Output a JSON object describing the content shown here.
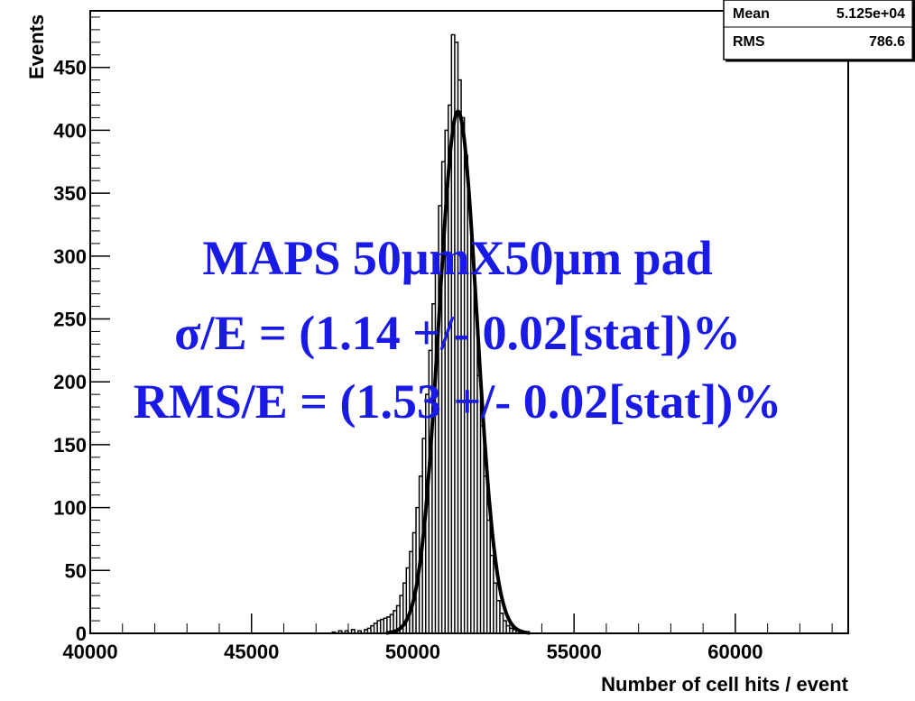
{
  "chart_data": {
    "type": "histogram",
    "xlabel": "Number of cell hits / event",
    "ylabel": "Events",
    "xlim": [
      40000,
      63500
    ],
    "ylim": [
      0,
      495
    ],
    "x_ticks": [
      40000,
      45000,
      50000,
      55000,
      60000
    ],
    "x_tick_labels": [
      "40000",
      "45000",
      "50000",
      "55000",
      "60000"
    ],
    "y_ticks": [
      0,
      50,
      100,
      150,
      200,
      250,
      300,
      350,
      400,
      450
    ],
    "y_tick_labels": [
      "0",
      "50",
      "100",
      "150",
      "200",
      "250",
      "300",
      "350",
      "400",
      "450"
    ],
    "stats": [
      {
        "label": "Mean",
        "value": "5.125e+04"
      },
      {
        "label": "RMS",
        "value": "786.6"
      }
    ],
    "histogram": {
      "bin_width": 100,
      "bins": [
        [
          47500,
          1
        ],
        [
          47700,
          2
        ],
        [
          47900,
          2
        ],
        [
          48100,
          3
        ],
        [
          48300,
          2
        ],
        [
          48500,
          3
        ],
        [
          48600,
          4
        ],
        [
          48700,
          6
        ],
        [
          48800,
          8
        ],
        [
          48900,
          10
        ],
        [
          49000,
          11
        ],
        [
          49100,
          12
        ],
        [
          49200,
          13
        ],
        [
          49300,
          15
        ],
        [
          49400,
          18
        ],
        [
          49500,
          22
        ],
        [
          49600,
          30
        ],
        [
          49700,
          40
        ],
        [
          49800,
          52
        ],
        [
          49900,
          65
        ],
        [
          50000,
          80
        ],
        [
          50100,
          100
        ],
        [
          50200,
          125
        ],
        [
          50300,
          155
        ],
        [
          50400,
          190
        ],
        [
          50500,
          225
        ],
        [
          50600,
          262
        ],
        [
          50700,
          300
        ],
        [
          50800,
          340
        ],
        [
          50900,
          375
        ],
        [
          51000,
          400
        ],
        [
          51100,
          420
        ],
        [
          51200,
          476
        ],
        [
          51300,
          470
        ],
        [
          51400,
          440
        ],
        [
          51500,
          410
        ],
        [
          51600,
          380
        ],
        [
          51700,
          340
        ],
        [
          51800,
          300
        ],
        [
          51900,
          255
        ],
        [
          52000,
          205
        ],
        [
          52100,
          165
        ],
        [
          52200,
          125
        ],
        [
          52300,
          90
        ],
        [
          52400,
          62
        ],
        [
          52500,
          40
        ],
        [
          52600,
          26
        ],
        [
          52700,
          16
        ],
        [
          52800,
          10
        ],
        [
          52900,
          6
        ],
        [
          53000,
          4
        ],
        [
          53100,
          3
        ],
        [
          53200,
          2
        ],
        [
          53300,
          1
        ]
      ]
    },
    "fit": {
      "type": "gaussian",
      "mean": 51400,
      "sigma": 587,
      "amplitude": 415
    }
  },
  "annotation": {
    "line1": "MAPS 50μmX50μm pad",
    "line2": "σ/E = (1.14 +/- 0.02[stat])%",
    "line3": "RMS/E = (1.53 +/- 0.02[stat])%",
    "color": "#1a1ae6"
  },
  "colors": {
    "background": "#ffffff",
    "axis": "#000000",
    "histogram": "#000000",
    "fit": "#000000"
  }
}
